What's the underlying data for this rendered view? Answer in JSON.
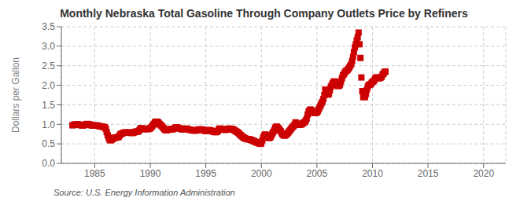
{
  "chart_data": {
    "type": "scatter",
    "title": "Monthly Nebraska Total Gasoline Through Company Outlets Price by Refiners",
    "ylabel": "Dollars per Gallon",
    "annotations": [
      "Source: U.S. Energy Information Administration"
    ],
    "color": "#cc0000",
    "marker": "square",
    "grid": true,
    "xlim": [
      1982,
      2022
    ],
    "ylim": [
      0.0,
      3.5
    ],
    "xticks": [
      1985,
      1990,
      1995,
      2000,
      2005,
      2010,
      2015,
      2020
    ],
    "yticks": [
      {
        "value": 0.0,
        "label": "0.0"
      },
      0.5,
      {
        "value": 1.0,
        "label": "1.0"
      },
      1.5,
      {
        "value": 2.0,
        "label": "2.0"
      },
      2.5,
      {
        "value": 3.0,
        "label": "3.0"
      },
      3.5
    ],
    "x": [
      1983.0,
      1983.083,
      1983.167,
      1983.25,
      1983.333,
      1983.417,
      1983.5,
      1983.583,
      1983.667,
      1983.75,
      1983.833,
      1983.917,
      1984.0,
      1984.083,
      1984.167,
      1984.25,
      1984.333,
      1984.417,
      1984.5,
      1984.583,
      1984.667,
      1984.75,
      1984.833,
      1984.917,
      1985.0,
      1985.083,
      1985.167,
      1985.25,
      1985.333,
      1985.417,
      1985.5,
      1985.583,
      1985.667,
      1985.75,
      1985.833,
      1985.917,
      1986.0,
      1986.083,
      1986.167,
      1986.25,
      1986.333,
      1986.417,
      1986.5,
      1986.583,
      1986.667,
      1986.75,
      1986.833,
      1986.917,
      1987.0,
      1987.083,
      1987.167,
      1987.25,
      1987.333,
      1987.417,
      1987.5,
      1987.583,
      1987.667,
      1987.75,
      1987.833,
      1987.917,
      1988.0,
      1988.083,
      1988.167,
      1988.25,
      1988.333,
      1988.417,
      1988.5,
      1988.583,
      1988.667,
      1988.75,
      1988.833,
      1988.917,
      1989.0,
      1989.083,
      1989.167,
      1989.25,
      1989.333,
      1989.417,
      1989.5,
      1989.583,
      1989.667,
      1989.75,
      1989.833,
      1989.917,
      1990.0,
      1990.083,
      1990.167,
      1990.25,
      1990.333,
      1990.417,
      1990.5,
      1990.583,
      1990.667,
      1990.75,
      1990.833,
      1990.917,
      1991.0,
      1991.083,
      1991.167,
      1991.25,
      1991.333,
      1991.417,
      1991.5,
      1991.583,
      1991.667,
      1991.75,
      1991.833,
      1991.917,
      1992.0,
      1992.083,
      1992.167,
      1992.25,
      1992.333,
      1992.417,
      1992.5,
      1992.583,
      1992.667,
      1992.75,
      1992.833,
      1992.917,
      1993.0,
      1993.083,
      1993.167,
      1993.25,
      1993.333,
      1993.417,
      1993.5,
      1993.583,
      1993.667,
      1993.75,
      1993.833,
      1993.917,
      1994.0,
      1994.083,
      1994.167,
      1994.25,
      1994.333,
      1994.417,
      1994.5,
      1994.583,
      1994.667,
      1994.75,
      1994.833,
      1994.917,
      1995.0,
      1995.083,
      1995.167,
      1995.25,
      1995.333,
      1995.417,
      1995.5,
      1995.583,
      1995.667,
      1995.75,
      1995.833,
      1995.917,
      1996.0,
      1996.083,
      1996.167,
      1996.25,
      1996.333,
      1996.417,
      1996.5,
      1996.583,
      1996.667,
      1996.75,
      1996.833,
      1996.917,
      1997.0,
      1997.083,
      1997.167,
      1997.25,
      1997.333,
      1997.417,
      1997.5,
      1997.583,
      1997.667,
      1997.75,
      1997.833,
      1997.917,
      1998.0,
      1998.083,
      1998.167,
      1998.25,
      1998.333,
      1998.417,
      1998.5,
      1998.583,
      1998.667,
      1998.75,
      1998.833,
      1998.917,
      1999.0,
      1999.083,
      1999.167,
      1999.25,
      1999.333,
      1999.417,
      1999.5,
      1999.583,
      1999.667,
      1999.75,
      1999.833,
      1999.917,
      2000.0,
      2000.083,
      2000.167,
      2000.25,
      2000.333,
      2000.417,
      2000.5,
      2000.583,
      2000.667,
      2000.75,
      2000.833,
      2000.917,
      2001.0,
      2001.083,
      2001.167,
      2001.25,
      2001.333,
      2001.417,
      2001.5,
      2001.583,
      2001.667,
      2001.75,
      2001.833,
      2001.917,
      2002.0,
      2002.083,
      2002.167,
      2002.25,
      2002.333,
      2002.417,
      2002.5,
      2002.583,
      2002.667,
      2002.75,
      2002.833,
      2002.917,
      2003.0,
      2003.083,
      2003.167,
      2003.25,
      2003.333,
      2003.417,
      2003.5,
      2003.583,
      2003.667,
      2003.75,
      2003.833,
      2003.917,
      2004.0,
      2004.083,
      2004.167,
      2004.25,
      2004.333,
      2004.417,
      2004.5,
      2004.583,
      2004.667,
      2004.75,
      2004.833,
      2004.917,
      2005.0,
      2005.083,
      2005.167,
      2005.25,
      2005.333,
      2005.417,
      2005.5,
      2005.583,
      2005.667,
      2005.75,
      2005.833,
      2005.917,
      2006.0,
      2006.083,
      2006.167,
      2006.25,
      2006.333,
      2006.417,
      2006.5,
      2006.583,
      2006.667,
      2006.75,
      2006.833,
      2006.917,
      2007.0,
      2007.083,
      2007.167,
      2007.25,
      2007.333,
      2007.417,
      2007.5,
      2007.583,
      2007.667,
      2007.75,
      2007.833,
      2007.917,
      2008.0,
      2008.083,
      2008.167,
      2008.25,
      2008.333,
      2008.417,
      2008.5,
      2008.583,
      2008.667,
      2008.75,
      2008.833,
      2008.917,
      2009.0,
      2009.083,
      2009.167,
      2009.25,
      2009.333,
      2009.417,
      2009.5,
      2009.583,
      2009.667,
      2009.75,
      2009.833,
      2009.917,
      2010.0,
      2010.083,
      2010.167,
      2010.25,
      2010.333,
      2010.417,
      2010.5,
      2010.583,
      2010.667,
      2010.75,
      2010.833,
      2010.917,
      2011.0,
      2011.083,
      2011.167
    ],
    "values": [
      0.975,
      0.98,
      0.99,
      0.995,
      1.0,
      0.995,
      1.0,
      0.99,
      0.985,
      0.98,
      0.975,
      0.97,
      0.975,
      0.985,
      0.995,
      1.0,
      1.01,
      1.005,
      1.0,
      0.99,
      0.98,
      0.975,
      0.97,
      0.965,
      0.97,
      0.975,
      0.97,
      0.965,
      0.96,
      0.955,
      0.95,
      0.945,
      0.94,
      0.935,
      0.93,
      0.925,
      0.88,
      0.8,
      0.72,
      0.66,
      0.61,
      0.59,
      0.6,
      0.62,
      0.64,
      0.65,
      0.66,
      0.66,
      0.67,
      0.67,
      0.68,
      0.72,
      0.75,
      0.76,
      0.77,
      0.78,
      0.79,
      0.79,
      0.79,
      0.79,
      0.79,
      0.79,
      0.79,
      0.78,
      0.78,
      0.78,
      0.79,
      0.8,
      0.81,
      0.81,
      0.81,
      0.82,
      0.84,
      0.88,
      0.9,
      0.9,
      0.89,
      0.88,
      0.88,
      0.88,
      0.88,
      0.88,
      0.88,
      0.89,
      0.9,
      0.92,
      0.95,
      0.98,
      1.01,
      1.05,
      1.06,
      1.07,
      1.06,
      1.04,
      1.01,
      0.98,
      0.97,
      0.94,
      0.91,
      0.88,
      0.86,
      0.85,
      0.85,
      0.86,
      0.87,
      0.87,
      0.875,
      0.875,
      0.875,
      0.88,
      0.895,
      0.91,
      0.92,
      0.92,
      0.91,
      0.905,
      0.895,
      0.885,
      0.875,
      0.87,
      0.88,
      0.885,
      0.89,
      0.89,
      0.88,
      0.87,
      0.865,
      0.86,
      0.855,
      0.85,
      0.845,
      0.84,
      0.84,
      0.84,
      0.845,
      0.855,
      0.865,
      0.87,
      0.87,
      0.87,
      0.865,
      0.855,
      0.845,
      0.835,
      0.83,
      0.83,
      0.845,
      0.855,
      0.85,
      0.845,
      0.835,
      0.825,
      0.815,
      0.805,
      0.8,
      0.8,
      0.81,
      0.83,
      0.87,
      0.89,
      0.89,
      0.88,
      0.87,
      0.865,
      0.86,
      0.86,
      0.86,
      0.87,
      0.885,
      0.89,
      0.89,
      0.885,
      0.88,
      0.875,
      0.86,
      0.845,
      0.83,
      0.815,
      0.8,
      0.785,
      0.76,
      0.735,
      0.715,
      0.695,
      0.675,
      0.66,
      0.645,
      0.635,
      0.625,
      0.62,
      0.62,
      0.615,
      0.61,
      0.6,
      0.59,
      0.58,
      0.57,
      0.56,
      0.545,
      0.535,
      0.53,
      0.52,
      0.51,
      0.5,
      0.515,
      0.59,
      0.66,
      0.71,
      0.74,
      0.73,
      0.7,
      0.67,
      0.65,
      0.655,
      0.68,
      0.72,
      0.77,
      0.81,
      0.85,
      0.91,
      0.94,
      0.94,
      0.91,
      0.88,
      0.85,
      0.82,
      0.77,
      0.74,
      0.72,
      0.71,
      0.72,
      0.74,
      0.76,
      0.79,
      0.82,
      0.85,
      0.88,
      0.91,
      0.94,
      0.96,
      1.0,
      1.05,
      1.02,
      1.0,
      1.0,
      0.99,
      0.99,
      1.0,
      1.01,
      1.03,
      1.05,
      1.06,
      1.1,
      1.15,
      1.25,
      1.32,
      1.36,
      1.38,
      1.36,
      1.32,
      1.3,
      1.29,
      1.29,
      1.29,
      1.31,
      1.34,
      1.39,
      1.44,
      1.49,
      1.54,
      1.58,
      1.65,
      1.75,
      1.89,
      1.84,
      1.78,
      1.76,
      1.78,
      1.87,
      1.96,
      2.0,
      2.05,
      2.09,
      2.1,
      2.07,
      2.05,
      2.0,
      1.98,
      1.99,
      2.02,
      2.1,
      2.18,
      2.25,
      2.28,
      2.32,
      2.36,
      2.37,
      2.39,
      2.42,
      2.46,
      2.5,
      2.54,
      2.62,
      2.73,
      2.85,
      2.97,
      3.05,
      3.15,
      3.23,
      3.35,
      3.05,
      2.7,
      2.2,
      1.85,
      1.7,
      1.7,
      1.7,
      1.78,
      1.89,
      1.97,
      2.01,
      2.02,
      2.02,
      2.06,
      2.09,
      2.1,
      2.13,
      2.18,
      2.2,
      2.2,
      2.18,
      2.18,
      2.19,
      2.2,
      2.22,
      2.28,
      2.3,
      2.34,
      2.35
    ]
  }
}
